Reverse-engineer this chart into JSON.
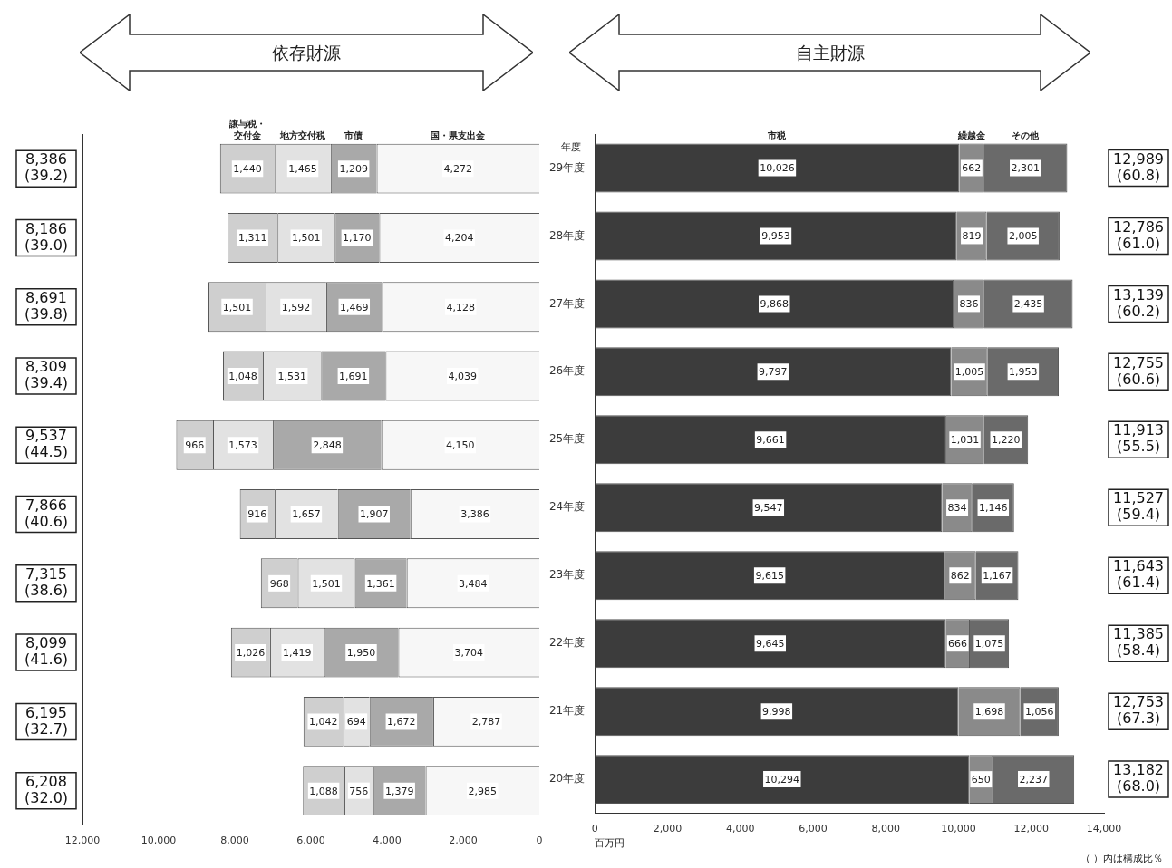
{
  "chart_data": [
    {
      "type": "bar",
      "title": "依存財源",
      "orientation": "horizontal",
      "stacked": true,
      "tick_labels": "x",
      "categories": [
        null,
        null,
        null,
        null,
        null,
        null,
        null,
        null,
        null,
        null
      ],
      "series": [
        {
          "name": "国・県支出金",
          "color": "#f7f7f7",
          "values": [
            4272,
            4204,
            4128,
            4039,
            4150,
            3386,
            3484,
            3704,
            2787,
            2985
          ],
          "value_labels": [
            "4,272",
            "4,204",
            "4,128",
            "4,039",
            "4,150",
            "3,386",
            "3,484",
            "3,704",
            "2,787",
            "2,985"
          ]
        },
        {
          "name": "市債",
          "color": "#a9a9a9",
          "values": [
            1209,
            1170,
            1469,
            1691,
            2848,
            1907,
            1361,
            1950,
            1672,
            1379
          ],
          "value_labels": [
            "1,209",
            "1,170",
            "1,469",
            "1,691",
            "2,848",
            "1,907",
            "1,361",
            "1,950",
            "1,672",
            "1,379"
          ]
        },
        {
          "name": "地方交付税",
          "color": "#e2e2e2",
          "values": [
            1465,
            1501,
            1592,
            1531,
            1573,
            1657,
            1501,
            1419,
            694,
            756
          ],
          "value_labels": [
            "1,465",
            "1,501",
            "1,592",
            "1,531",
            "1,573",
            "1,657",
            "1,501",
            "1,419",
            "694",
            "756"
          ]
        },
        {
          "name": "譲与税・交付金",
          "color": "#cfcfcf",
          "values": [
            1440,
            1311,
            1501,
            1048,
            966,
            916,
            968,
            1026,
            1042,
            1088
          ],
          "value_labels": [
            "1,440",
            "1,311",
            "1,501",
            "1,048",
            "966",
            "916",
            "968",
            "1,026",
            "1,042",
            "1,088"
          ]
        }
      ],
      "annotations": [
        "8,386 (39.2)",
        "8,186 (39.0)",
        "8,691 (39.8)",
        "8,309 (39.4)",
        "9,537 (44.5)",
        "7,866 (40.6)",
        "7,315 (38.6)",
        "8,099 (41.6)",
        "6,195 (32.7)",
        "6,208 (32.0)"
      ],
      "xlim": [
        12000,
        0
      ],
      "xticks": [
        {
          "value": 12000,
          "label": "12,000"
        },
        {
          "value": 10000,
          "label": "10,000"
        },
        {
          "value": 8000,
          "label": "8,000"
        },
        {
          "value": 6000,
          "label": "6,000"
        },
        {
          "value": 4000,
          "label": "4,000"
        },
        {
          "value": 2000,
          "label": "2,000"
        },
        0
      ]
    },
    {
      "type": "bar",
      "title": "自主財源",
      "orientation": "horizontal",
      "stacked": true,
      "ylabel": "年度",
      "xlabel": "百万円",
      "annotations": [
        "12,989 (60.8)",
        "12,786 (61.0)",
        "13,139 (60.2)",
        "12,755 (60.6)",
        "11,913 (55.5)",
        "11,527 (59.4)",
        "11,643 (61.4)",
        "11,385 (58.4)",
        "12,753 (67.3)",
        "13,182 (68.0)",
        "（ ）内は構成比％"
      ],
      "categories": [
        "29年度",
        "28年度",
        "27年度",
        "26年度",
        "25年度",
        "24年度",
        "23年度",
        "22年度",
        "21年度",
        "20年度"
      ],
      "series": [
        {
          "name": "市税",
          "color": "#3c3c3c",
          "values": [
            10026,
            9953,
            9868,
            9797,
            9661,
            9547,
            9615,
            9645,
            9998,
            10294
          ],
          "value_labels": [
            "10,026",
            "9,953",
            "9,868",
            "9,797",
            "9,661",
            "9,547",
            "9,615",
            "9,645",
            "9,998",
            "10,294"
          ]
        },
        {
          "name": "繰越金",
          "color": "#8a8a8a",
          "values": [
            662,
            819,
            836,
            1005,
            1031,
            834,
            862,
            666,
            1698,
            650
          ],
          "value_labels": [
            "662",
            "819",
            "836",
            "1,005",
            "1,031",
            "834",
            "862",
            "666",
            "1,698",
            "650"
          ]
        },
        {
          "name": "その他",
          "color": "#6a6a6a",
          "values": [
            2301,
            2005,
            2435,
            1953,
            1220,
            1146,
            1167,
            1075,
            1056,
            2237
          ],
          "value_labels": [
            "2,301",
            "2,005",
            "2,435",
            "1,953",
            "1,220",
            "1,146",
            "1,167",
            "1,075",
            "1,056",
            "2,237"
          ]
        }
      ],
      "xlim": [
        0,
        14000
      ],
      "xticks": [
        0,
        {
          "value": 2000,
          "label": "2,000"
        },
        {
          "value": 4000,
          "label": "4,000"
        },
        {
          "value": 6000,
          "label": "6,000"
        },
        {
          "value": 8000,
          "label": "8,000"
        },
        {
          "value": 10000,
          "label": "10,000"
        },
        {
          "value": 12000,
          "label": "12,000"
        },
        {
          "value": 14000,
          "label": "14,000"
        }
      ]
    }
  ]
}
